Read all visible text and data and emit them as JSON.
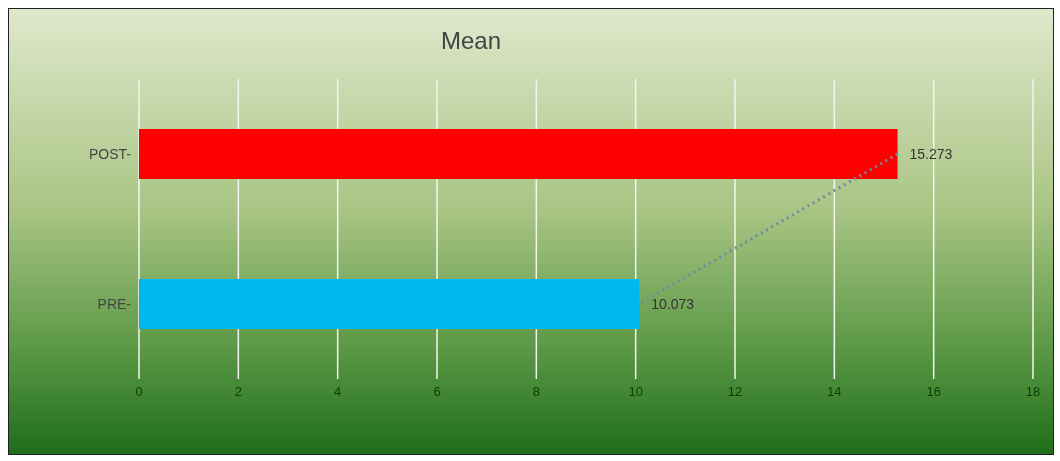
{
  "chart_data": {
    "type": "bar",
    "orientation": "horizontal",
    "title": "Mean",
    "categories": [
      "POST-",
      "PRE-"
    ],
    "series": [
      {
        "values": [
          15.273,
          10.073
        ],
        "colors": [
          "#ff0000",
          "#00b8f0"
        ],
        "value_labels": [
          "15.273",
          "10.073"
        ]
      },
      {
        "type": "line",
        "values": [
          15.273,
          10.073
        ],
        "color": "#6f8aa0",
        "line_style": "dotted"
      }
    ],
    "xlim": [
      0,
      18
    ],
    "xticks": [
      0,
      2,
      4,
      6,
      8,
      10,
      12,
      14,
      16,
      18
    ],
    "grid": "x"
  }
}
